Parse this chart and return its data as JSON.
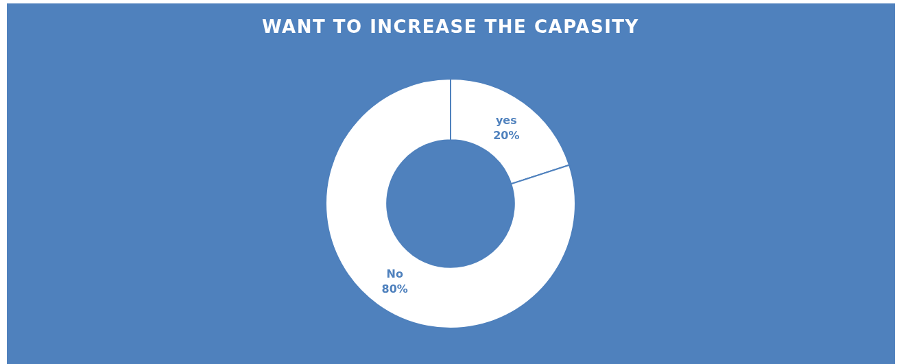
{
  "chart_data": {
    "type": "donut",
    "title": "WANT TO INCREASE THE CAPASITY",
    "categories": [
      "yes",
      "No"
    ],
    "values": [
      20,
      80
    ],
    "value_labels": [
      "20%",
      "80%"
    ],
    "colors": [
      "#ffffff",
      "#ffffff"
    ]
  }
}
